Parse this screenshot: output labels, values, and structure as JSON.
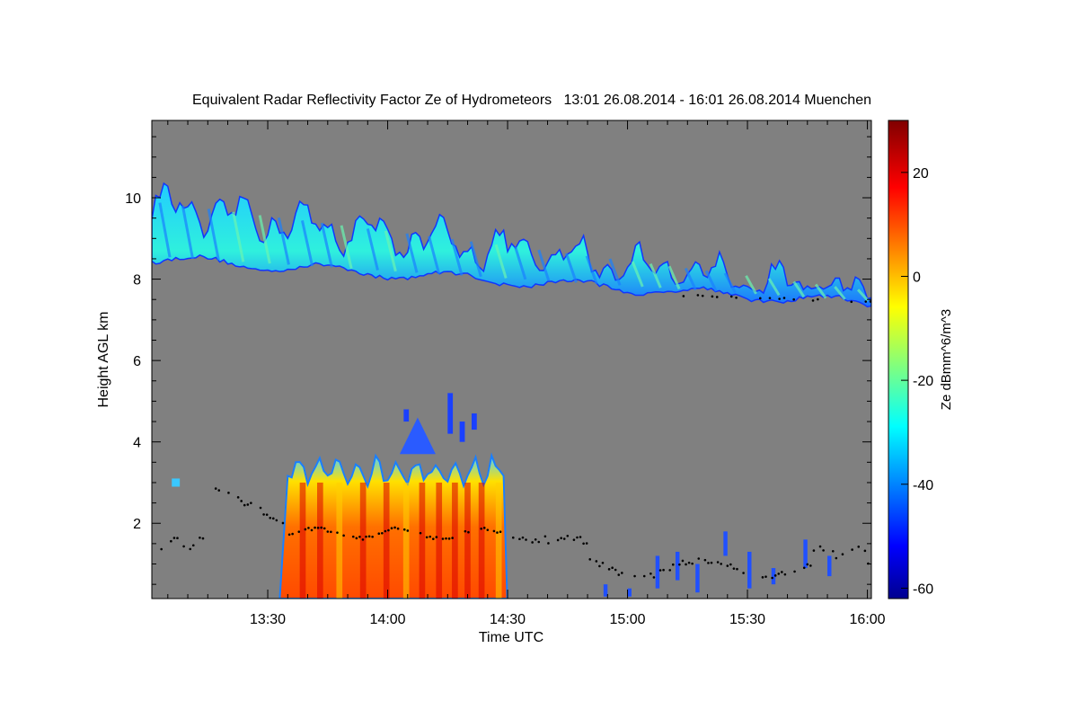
{
  "chart_data": {
    "type": "heatmap",
    "title": "Equivalent Radar Reflectivity Factor Ze of Hydrometeors   13:01 26.08.2014 - 16:01 26.08.2014 Muenchen",
    "xlabel": "Time UTC",
    "ylabel": "Height AGL km",
    "x_range_minutes_utc": [
      781,
      961
    ],
    "x_ticks": [
      {
        "label": "13:30",
        "value": 810
      },
      {
        "label": "14:00",
        "value": 840
      },
      {
        "label": "14:30",
        "value": 870
      },
      {
        "label": "15:00",
        "value": 900
      },
      {
        "label": "15:30",
        "value": 930
      },
      {
        "label": "16:00",
        "value": 960
      }
    ],
    "ylim": [
      0.15,
      11.9
    ],
    "y_ticks": [
      {
        "label": "2",
        "value": 2
      },
      {
        "label": "4",
        "value": 4
      },
      {
        "label": "6",
        "value": 6
      },
      {
        "label": "8",
        "value": 8
      },
      {
        "label": "10",
        "value": 10
      }
    ],
    "colorbar": {
      "label": "Ze dBmm^6/m^3",
      "range": [
        -62,
        30
      ],
      "ticks": [
        {
          "label": "20",
          "value": 20
        },
        {
          "label": "0",
          "value": 0
        },
        {
          "label": "-20",
          "value": -20
        },
        {
          "label": "-40",
          "value": -40
        },
        {
          "label": "-60",
          "value": -60
        }
      ]
    },
    "background_color": "#808080",
    "features": [
      {
        "name": "upper cirrus layer",
        "time_min": [
          781,
          961
        ],
        "base_km": [
          8.5,
          7.4
        ],
        "top_km": [
          9.8,
          7.6
        ],
        "ze_dbz": [
          -40,
          -25
        ]
      },
      {
        "name": "precipitation shaft",
        "time_min": [
          815,
          869
        ],
        "base_km": [
          0.15,
          0.15
        ],
        "top_km": [
          3.7,
          3.7
        ],
        "ze_dbz": [
          -10,
          25
        ]
      },
      {
        "name": "convective top",
        "time_min": [
          843,
          852
        ],
        "base_km": [
          3.7,
          3.7
        ],
        "top_km": [
          4.6,
          4.6
        ],
        "ze_dbz": [
          -45,
          -35
        ]
      },
      {
        "name": "isolated echoes",
        "time_min": [
          844,
          864
        ],
        "base_km": [
          4.2,
          4.2
        ],
        "top_km": [
          5.2,
          5.2
        ],
        "ze_dbz": [
          -50,
          -45
        ]
      },
      {
        "name": "weak low echoes",
        "time_min": [
          893,
          950
        ],
        "base_km": [
          0.15,
          0.15
        ],
        "top_km": [
          1.8,
          1.8
        ],
        "ze_dbz": [
          -55,
          -45
        ]
      }
    ],
    "cloud_base_points": "black dots marking detected cloud base"
  }
}
